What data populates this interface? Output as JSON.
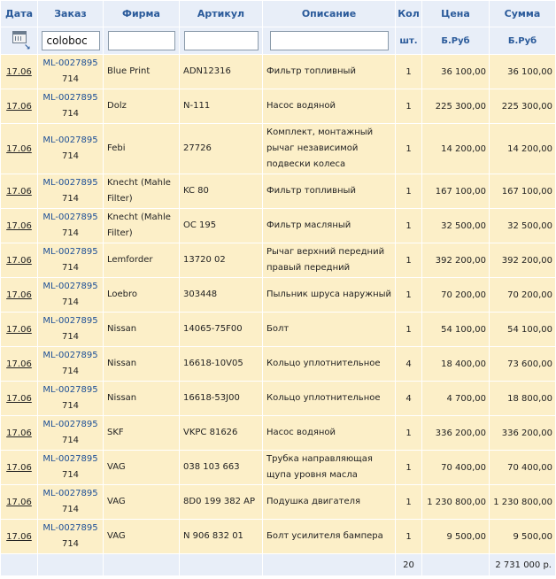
{
  "headers": {
    "date": "Дата",
    "order": "Заказ",
    "firm": "Фирма",
    "article": "Артикул",
    "description": "Описание",
    "qty": "Кол",
    "price": "Цена",
    "sum": "Сумма"
  },
  "filters": {
    "order_value": "coloboc",
    "firm_value": "",
    "article_value": "",
    "description_value": "",
    "qty_unit": "шт.",
    "price_currency": "Б.Руб",
    "sum_currency": "Б.Руб"
  },
  "rows": [
    {
      "date": "17.06",
      "order": "ML-0027895",
      "order_sub": "714",
      "firm": "Blue Print",
      "article": "ADN12316",
      "description": "Фильтр топливный",
      "qty": "1",
      "price": "36 100,00",
      "sum": "36 100,00"
    },
    {
      "date": "17.06",
      "order": "ML-0027895",
      "order_sub": "714",
      "firm": "Dolz",
      "article": "N-111",
      "description": "Насос водяной",
      "qty": "1",
      "price": "225 300,00",
      "sum": "225 300,00"
    },
    {
      "date": "17.06",
      "order": "ML-0027895",
      "order_sub": "714",
      "firm": "Febi",
      "article": "27726",
      "description": "Комплект, монтажный рычаг независимой подвески колеса",
      "qty": "1",
      "price": "14 200,00",
      "sum": "14 200,00"
    },
    {
      "date": "17.06",
      "order": "ML-0027895",
      "order_sub": "714",
      "firm": "Knecht (Mahle Filter)",
      "article": "KC 80",
      "description": "Фильтр топливный",
      "qty": "1",
      "price": "167 100,00",
      "sum": "167 100,00"
    },
    {
      "date": "17.06",
      "order": "ML-0027895",
      "order_sub": "714",
      "firm": "Knecht (Mahle Filter)",
      "article": "OC 195",
      "description": "Фильтр масляный",
      "qty": "1",
      "price": "32 500,00",
      "sum": "32 500,00"
    },
    {
      "date": "17.06",
      "order": "ML-0027895",
      "order_sub": "714",
      "firm": "Lemforder",
      "article": "13720 02",
      "description": "Рычаг верхний передний правый передний",
      "qty": "1",
      "price": "392 200,00",
      "sum": "392 200,00"
    },
    {
      "date": "17.06",
      "order": "ML-0027895",
      "order_sub": "714",
      "firm": "Loebro",
      "article": "303448",
      "description": "Пыльник шруса наружный",
      "qty": "1",
      "price": "70 200,00",
      "sum": "70 200,00"
    },
    {
      "date": "17.06",
      "order": "ML-0027895",
      "order_sub": "714",
      "firm": "Nissan",
      "article": "14065-75F00",
      "description": "Болт",
      "qty": "1",
      "price": "54 100,00",
      "sum": "54 100,00"
    },
    {
      "date": "17.06",
      "order": "ML-0027895",
      "order_sub": "714",
      "firm": "Nissan",
      "article": "16618-10V05",
      "description": "Кольцо уплотнительное",
      "qty": "4",
      "price": "18 400,00",
      "sum": "73 600,00"
    },
    {
      "date": "17.06",
      "order": "ML-0027895",
      "order_sub": "714",
      "firm": "Nissan",
      "article": "16618-53J00",
      "description": "Кольцо уплотнительное",
      "qty": "4",
      "price": "4 700,00",
      "sum": "18 800,00"
    },
    {
      "date": "17.06",
      "order": "ML-0027895",
      "order_sub": "714",
      "firm": "SKF",
      "article": "VKPC 81626",
      "description": "Насос водяной",
      "qty": "1",
      "price": "336 200,00",
      "sum": "336 200,00"
    },
    {
      "date": "17.06",
      "order": "ML-0027895",
      "order_sub": "714",
      "firm": "VAG",
      "article": "038 103 663",
      "description": "Трубка направляющая щупа уровня масла",
      "qty": "1",
      "price": "70 400,00",
      "sum": "70 400,00"
    },
    {
      "date": "17.06",
      "order": "ML-0027895",
      "order_sub": "714",
      "firm": "VAG",
      "article": "8D0 199 382 AP",
      "description": "Подушка двигателя",
      "qty": "1",
      "price": "1 230 800,00",
      "sum": "1 230 800,00"
    },
    {
      "date": "17.06",
      "order": "ML-0027895",
      "order_sub": "714",
      "firm": "VAG",
      "article": "N 906 832 01",
      "description": "Болт усилителя бампера",
      "qty": "1",
      "price": "9 500,00",
      "sum": "9 500,00"
    }
  ],
  "totals": {
    "qty": "20",
    "sum": "2 731 000 р."
  },
  "icons": {
    "calendar": "calendar-icon",
    "sort": "sort-arrow-icon"
  }
}
